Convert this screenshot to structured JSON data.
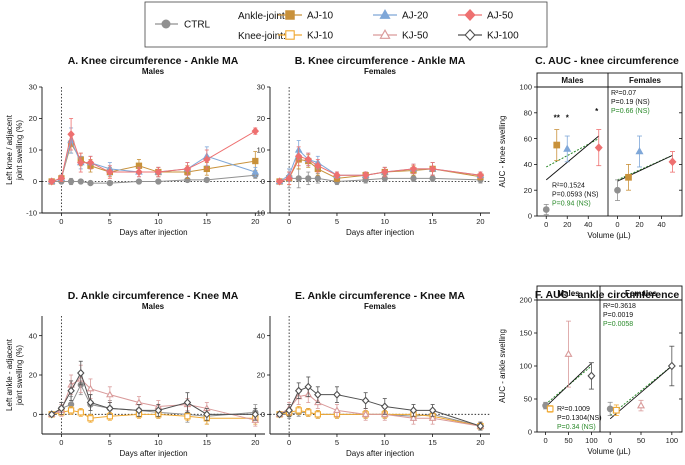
{
  "colors": {
    "ctrl": "#909090",
    "aj10": "#c8913a",
    "aj20": "#7fa7d8",
    "aj50": "#ee7070",
    "kj10": "#f0a830",
    "kj50": "#d99a9a",
    "kj100": "#505050",
    "green": "#2a8a2a"
  },
  "legend": {
    "ctrl_label": "CTRL",
    "ankle_header": "Ankle-joint:",
    "knee_header": "Knee-joint:",
    "items": [
      {
        "key": "aj10",
        "label": "AJ-10",
        "marker": "square-filled"
      },
      {
        "key": "aj20",
        "label": "AJ-20",
        "marker": "triangle-filled"
      },
      {
        "key": "aj50",
        "label": "AJ-50",
        "marker": "diamond-filled"
      },
      {
        "key": "kj10",
        "label": "KJ-10",
        "marker": "square-open"
      },
      {
        "key": "kj50",
        "label": "KJ-50",
        "marker": "triangle-open"
      },
      {
        "key": "kj100",
        "label": "KJ-100",
        "marker": "diamond-open"
      }
    ]
  },
  "chart_data": [
    {
      "id": "A",
      "type": "line",
      "title": "A. Knee circumference - Ankle MA",
      "subtitle": "Males",
      "ylabel": "Left knee / adjacent joint swelling (%)",
      "xlabel": "Days after injection",
      "xlim": [
        -2,
        21
      ],
      "ylim": [
        -10,
        30
      ],
      "xticks": [
        0,
        5,
        10,
        15,
        20
      ],
      "yticks": [
        -10,
        0,
        10,
        20,
        30
      ],
      "series": [
        {
          "key": "ctrl",
          "x": [
            -1,
            0,
            1,
            2,
            3,
            5,
            8,
            10,
            13,
            15,
            20
          ],
          "y": [
            0,
            0,
            0,
            0,
            -0.5,
            -0.5,
            0,
            0,
            0.5,
            0.5,
            2
          ],
          "err": [
            0.5,
            0.5,
            1,
            0.5,
            0.5,
            0.5,
            0.5,
            0.5,
            0.5,
            0.5,
            1
          ]
        },
        {
          "key": "aj10",
          "x": [
            -1,
            0,
            1,
            2,
            3,
            5,
            8,
            10,
            13,
            15,
            20
          ],
          "y": [
            0,
            1,
            12,
            7,
            5,
            3,
            5,
            3,
            3,
            4,
            6.5
          ],
          "err": [
            0.5,
            1,
            3,
            2,
            2,
            1.5,
            2,
            1.5,
            2,
            2,
            3
          ]
        },
        {
          "key": "aj20",
          "x": [
            -1,
            0,
            1,
            2,
            3,
            5,
            8,
            10,
            13,
            15,
            20
          ],
          "y": [
            0,
            1,
            13,
            6,
            6,
            4,
            3,
            3,
            4,
            8,
            3
          ],
          "err": [
            0.5,
            1,
            4,
            2,
            2,
            2,
            1.5,
            1.5,
            2,
            3,
            1.5
          ]
        },
        {
          "key": "aj50",
          "x": [
            -1,
            0,
            1,
            2,
            3,
            5,
            8,
            10,
            13,
            15,
            20
          ],
          "y": [
            0,
            1,
            15,
            6,
            6,
            3,
            3,
            3,
            4,
            7,
            16
          ],
          "err": [
            0.5,
            1,
            5,
            3,
            2,
            2,
            1.5,
            1.5,
            2,
            3,
            1
          ]
        }
      ]
    },
    {
      "id": "B",
      "type": "line",
      "title": "B. Knee circumference - Ankle MA",
      "subtitle": "Females",
      "ylabel": "",
      "xlabel": "Days after injection",
      "xlim": [
        -2,
        21
      ],
      "ylim": [
        -10,
        30
      ],
      "xticks": [
        0,
        5,
        10,
        15,
        20
      ],
      "yticks": [
        -10,
        0,
        10,
        20,
        30
      ],
      "series": [
        {
          "key": "ctrl",
          "x": [
            -1,
            0,
            1,
            2,
            3,
            5,
            8,
            10,
            13,
            15,
            20
          ],
          "y": [
            0,
            1,
            1,
            1,
            1,
            0,
            0.5,
            1,
            1,
            1,
            0.5
          ],
          "err": [
            0.5,
            3,
            3,
            2,
            1.5,
            1,
            1,
            1,
            1,
            1,
            1
          ]
        },
        {
          "key": "aj10",
          "x": [
            -1,
            0,
            1,
            2,
            3,
            5,
            8,
            10,
            13,
            15,
            20
          ],
          "y": [
            0,
            1,
            7,
            6.5,
            4,
            1,
            2,
            3,
            3.5,
            4,
            1.5
          ],
          "err": [
            0.5,
            2,
            3,
            2,
            2,
            1,
            1,
            1.5,
            1.5,
            2,
            1
          ]
        },
        {
          "key": "aj20",
          "x": [
            -1,
            0,
            1,
            2,
            3,
            5,
            8,
            10,
            13,
            15,
            20
          ],
          "y": [
            0,
            2,
            10,
            7,
            6,
            2,
            2,
            3,
            4,
            4,
            2
          ],
          "err": [
            0.5,
            2,
            3,
            2,
            2,
            1,
            1,
            1.5,
            1.5,
            2,
            1
          ]
        },
        {
          "key": "aj50",
          "x": [
            -1,
            0,
            1,
            2,
            3,
            5,
            8,
            10,
            13,
            15,
            20
          ],
          "y": [
            0,
            1,
            8,
            7,
            5,
            2,
            2,
            3,
            4,
            4,
            2
          ],
          "err": [
            0.5,
            2,
            3,
            2,
            2,
            1,
            1,
            1.5,
            1.5,
            2,
            1
          ]
        }
      ]
    },
    {
      "id": "C",
      "type": "scatter",
      "title": "C. AUC - knee circumference",
      "panels": [
        "Males",
        "Females"
      ],
      "ylabel": "AUC - knee swelling",
      "xlabel": "Volume (µL)",
      "xlim": [
        -5,
        55
      ],
      "ylim": [
        0,
        100
      ],
      "xticks": [
        0,
        20,
        40
      ],
      "yticks": [
        0,
        20,
        40,
        60,
        80,
        100
      ],
      "left": {
        "points": [
          {
            "key": "ctrl",
            "x": 0,
            "y": 5,
            "err": 4
          },
          {
            "key": "aj10",
            "x": 10,
            "y": 55,
            "err": 12
          },
          {
            "key": "aj20",
            "x": 20,
            "y": 52,
            "err": 10
          },
          {
            "key": "aj50",
            "x": 50,
            "y": 53,
            "err": 14
          }
        ],
        "stars": [
          {
            "x": 10,
            "y": 74,
            "text": "**"
          },
          {
            "x": 20,
            "y": 74,
            "text": "*"
          },
          {
            "x": 48,
            "y": 79,
            "text": "*"
          }
        ],
        "fit_black": [
          [
            0,
            28
          ],
          [
            50,
            62
          ]
        ],
        "fit_green": [
          [
            0,
            38
          ],
          [
            50,
            60
          ]
        ],
        "stats": [
          "R²=0.1524",
          "P=0.0593 (NS)",
          "P=0.94 (NS)"
        ]
      },
      "right": {
        "points": [
          {
            "key": "ctrl",
            "x": 0,
            "y": 20,
            "err": 8
          },
          {
            "key": "aj10",
            "x": 10,
            "y": 30,
            "err": 10
          },
          {
            "key": "aj20",
            "x": 20,
            "y": 50,
            "err": 12
          },
          {
            "key": "aj50",
            "x": 50,
            "y": 42,
            "err": 8
          }
        ],
        "fit_black": [
          [
            0,
            27
          ],
          [
            50,
            47
          ]
        ],
        "fit_green": [
          [
            0,
            28
          ],
          [
            50,
            47
          ]
        ],
        "stats": [
          "R²=0.07",
          "P=0.19 (NS)",
          "P=0.66 (NS)"
        ]
      }
    },
    {
      "id": "D",
      "type": "line",
      "title": "D. Ankle circumference - Knee MA",
      "subtitle": "Males",
      "ylabel": "Left ankle - adjacent joint swelling (%)",
      "xlabel": "Days after injection",
      "xlim": [
        -2,
        21
      ],
      "ylim": [
        -10,
        50
      ],
      "xticks": [
        0,
        5,
        10,
        15,
        20
      ],
      "yticks": [
        0,
        20,
        40
      ],
      "series": [
        {
          "key": "ctrl",
          "x": [
            -1,
            0,
            1,
            2,
            3,
            5,
            8,
            10,
            13,
            15,
            20
          ],
          "y": [
            0,
            3,
            5,
            15,
            5,
            3,
            2,
            1,
            0,
            -1,
            1
          ],
          "err": [
            1,
            3,
            4,
            5,
            5,
            4,
            3,
            3,
            4,
            4,
            4
          ]
        },
        {
          "key": "kj10",
          "x": [
            -1,
            0,
            1,
            2,
            3,
            5,
            8,
            10,
            13,
            15,
            20
          ],
          "y": [
            0,
            1,
            2,
            1,
            -2,
            -1,
            0,
            0,
            -1,
            -2,
            -2
          ],
          "err": [
            1,
            1,
            2,
            2,
            2,
            2,
            2,
            2,
            2,
            3,
            3
          ]
        },
        {
          "key": "kj50",
          "x": [
            -1,
            0,
            1,
            2,
            3,
            5,
            8,
            10,
            13,
            15,
            20
          ],
          "y": [
            0,
            2,
            15,
            18,
            13,
            10,
            6,
            4,
            5,
            3,
            -3
          ],
          "err": [
            1,
            3,
            5,
            7,
            5,
            4,
            3,
            3,
            3,
            3,
            3
          ]
        },
        {
          "key": "kj100",
          "x": [
            -1,
            0,
            1,
            2,
            3,
            5,
            8,
            10,
            13,
            15,
            20
          ],
          "y": [
            0,
            3,
            12,
            21,
            6,
            3,
            2,
            2,
            6,
            0,
            0
          ],
          "err": [
            1,
            3,
            5,
            6,
            4,
            3,
            3,
            3,
            5,
            3,
            3
          ]
        }
      ]
    },
    {
      "id": "E",
      "type": "line",
      "title": "E. Ankle circumference - Knee MA",
      "subtitle": "Females",
      "ylabel": "",
      "xlabel": "Days after injection",
      "xlim": [
        -2,
        21
      ],
      "ylim": [
        -10,
        50
      ],
      "xticks": [
        0,
        5,
        10,
        15,
        20
      ],
      "yticks": [
        0,
        20,
        40
      ],
      "series": [
        {
          "key": "ctrl",
          "x": [
            -1,
            0,
            1,
            2,
            3,
            5,
            8,
            10,
            13,
            15,
            20
          ],
          "y": [
            0,
            0,
            1,
            1,
            0,
            0,
            0,
            0,
            -1,
            0,
            -6
          ],
          "err": [
            1,
            2,
            2,
            2,
            2,
            2,
            2,
            2,
            2,
            2,
            2
          ]
        },
        {
          "key": "kj10",
          "x": [
            -1,
            0,
            1,
            2,
            3,
            5,
            8,
            10,
            13,
            15,
            20
          ],
          "y": [
            0,
            1,
            2,
            1,
            0,
            0,
            0,
            0,
            0,
            -1,
            -6
          ],
          "err": [
            1,
            2,
            2,
            2,
            2,
            2,
            2,
            2,
            2,
            2,
            2
          ]
        },
        {
          "key": "kj50",
          "x": [
            -1,
            0,
            1,
            2,
            3,
            5,
            8,
            10,
            13,
            15,
            20
          ],
          "y": [
            0,
            3,
            9,
            10,
            6,
            2,
            0,
            0,
            -2,
            -2,
            -6
          ],
          "err": [
            1,
            3,
            4,
            4,
            3,
            3,
            3,
            3,
            3,
            3,
            2
          ]
        },
        {
          "key": "kj100",
          "x": [
            -1,
            0,
            1,
            2,
            3,
            5,
            8,
            10,
            13,
            15,
            20
          ],
          "y": [
            0,
            2,
            12,
            14,
            10,
            10,
            7,
            4,
            2,
            2,
            -6
          ],
          "err": [
            1,
            3,
            4,
            5,
            4,
            4,
            4,
            4,
            3,
            3,
            2
          ]
        }
      ]
    },
    {
      "id": "F",
      "type": "scatter",
      "title": "F. AUC - ankle circumference",
      "panels": [
        "Males",
        "Females"
      ],
      "ylabel": "AUC - ankle swelling",
      "xlabel": "Volume (µL)",
      "xlim": [
        -10,
        110
      ],
      "ylim": [
        0,
        200
      ],
      "xticks": [
        0,
        50,
        100
      ],
      "yticks": [
        0,
        50,
        100,
        150,
        200
      ],
      "left": {
        "points": [
          {
            "key": "ctrl",
            "x": 0,
            "y": 40,
            "err": 5
          },
          {
            "key": "kj10",
            "x": 10,
            "y": 35,
            "err": 5
          },
          {
            "key": "kj50",
            "x": 50,
            "y": 118,
            "err": 50
          },
          {
            "key": "kj100",
            "x": 100,
            "y": 85,
            "err": 20
          }
        ],
        "fit_black": [
          [
            0,
            38
          ],
          [
            100,
            104
          ]
        ],
        "fit_green": [
          [
            0,
            42
          ],
          [
            100,
            100
          ]
        ],
        "stats": [
          "R²=0.1009",
          "P=0.1304(NS)",
          "P=0.34 (NS)"
        ]
      },
      "right": {
        "points": [
          {
            "key": "ctrl",
            "x": 0,
            "y": 35,
            "err": 10
          },
          {
            "key": "kj10",
            "x": 10,
            "y": 33,
            "err": 8
          },
          {
            "key": "kj50",
            "x": 50,
            "y": 40,
            "err": 8
          },
          {
            "key": "kj100",
            "x": 100,
            "y": 100,
            "err": 30
          }
        ],
        "fit_black": [
          [
            0,
            20
          ],
          [
            100,
            100
          ]
        ],
        "fit_green": [
          [
            0,
            25
          ],
          [
            100,
            100
          ]
        ],
        "stats": [
          "R²=0.3618",
          "P=0.0019",
          "P=0.0058"
        ]
      }
    }
  ]
}
